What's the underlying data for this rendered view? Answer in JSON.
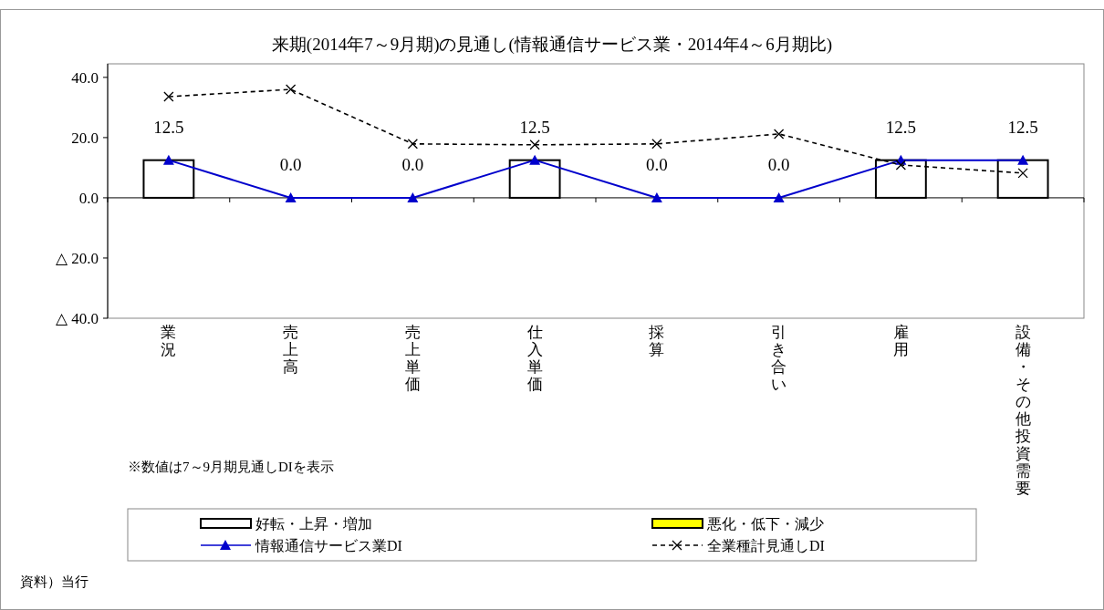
{
  "chart_data": {
    "type": "bar",
    "title": "来期(2014年7～9月期)の見通し(情報通信サービス業・2014年4～6月期比)",
    "categories": [
      "業況",
      "売上高",
      "売上単価",
      "仕入単価",
      "採算",
      "引き合い",
      "雇用",
      "設備・その他投資需要"
    ],
    "stacked": true,
    "series": [
      {
        "name": "好転・上昇・増加",
        "color": "#ffffff",
        "values": [
          12.5,
          0,
          0,
          12.5,
          0,
          0,
          12.5,
          12.5
        ]
      },
      {
        "name": "悪化・低下・減少",
        "color": "#ffff00",
        "values": [
          0,
          0,
          0,
          0,
          0,
          0,
          0,
          0
        ]
      },
      {
        "name": "情報通信サービス業DI",
        "type": "line",
        "color": "#0000cc",
        "marker": "triangle",
        "line_style": "solid",
        "values": [
          12.5,
          0,
          0,
          12.5,
          0,
          0,
          12.5,
          12.5
        ],
        "value_labels": [
          "12.5",
          "0.0",
          "0.0",
          "12.5",
          "0.0",
          "0.0",
          "12.5",
          "12.5"
        ]
      },
      {
        "name": "全業種計見通しDI",
        "type": "line",
        "color": "#000000",
        "marker": "cross",
        "line_style": "dashed",
        "values": [
          33.6,
          36,
          17.9,
          17.6,
          17.9,
          21.2,
          10.9,
          8.2
        ]
      }
    ],
    "ylim": [
      -40,
      44.5
    ],
    "yticks": [
      {
        "value": 40,
        "label": "40.0"
      },
      {
        "value": 20,
        "label": "20.0"
      },
      {
        "value": 0,
        "label": "0.0"
      },
      {
        "value": -20,
        "label": "△ 20.0"
      },
      {
        "value": -40,
        "label": "△ 40.0"
      }
    ],
    "legend": "bottom",
    "annotations": [
      "※数値は7～9月期見通しDIを表示",
      "資料）当行"
    ]
  }
}
